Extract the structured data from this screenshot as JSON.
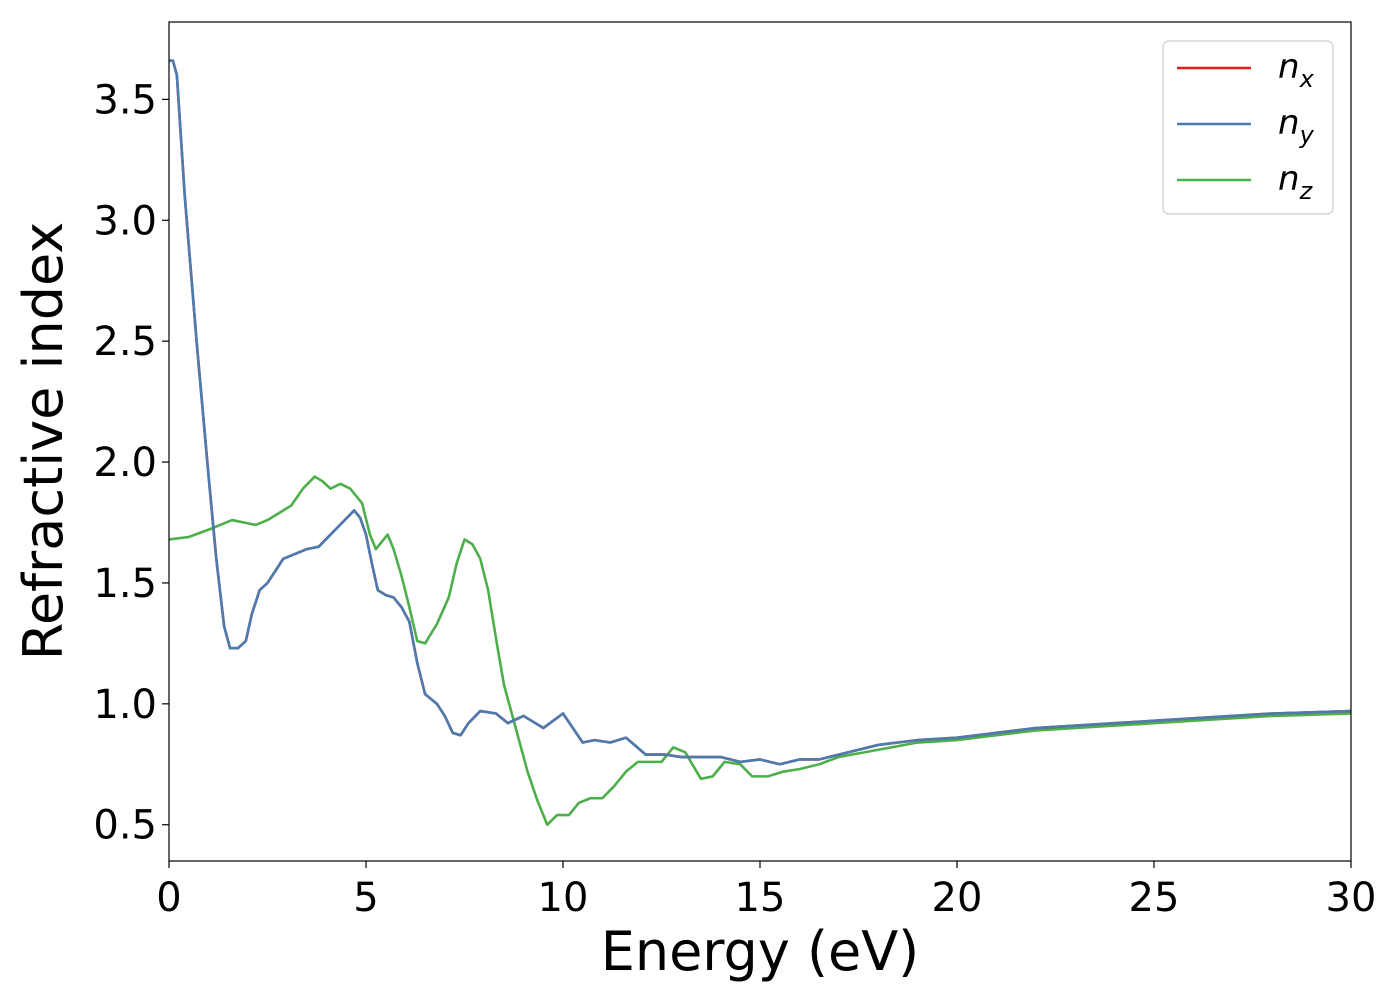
{
  "chart_data": {
    "type": "line",
    "title": "",
    "xlabel": "Energy (eV)",
    "ylabel": "Refractive index",
    "xlim": [
      0,
      30
    ],
    "ylim": [
      0.35,
      3.82
    ],
    "x_ticks": [
      "0",
      "5",
      "10",
      "15",
      "20",
      "25",
      "30"
    ],
    "y_ticks": [
      "0.5",
      "1.0",
      "1.5",
      "2.0",
      "2.5",
      "3.0",
      "3.5"
    ],
    "grid": false,
    "legend_position": "top-right",
    "series": [
      {
        "name": "n",
        "subscript": "x",
        "color": "#e41a1c",
        "points": [
          [
            0,
            3.66
          ],
          [
            0.1,
            3.66
          ],
          [
            0.2,
            3.6
          ],
          [
            0.4,
            3.1
          ],
          [
            0.7,
            2.5
          ],
          [
            1.0,
            1.95
          ],
          [
            1.2,
            1.6
          ],
          [
            1.4,
            1.32
          ],
          [
            1.55,
            1.23
          ],
          [
            1.75,
            1.23
          ],
          [
            1.95,
            1.26
          ],
          [
            2.1,
            1.37
          ],
          [
            2.3,
            1.47
          ],
          [
            2.5,
            1.5
          ],
          [
            2.7,
            1.55
          ],
          [
            2.9,
            1.6
          ],
          [
            3.2,
            1.62
          ],
          [
            3.5,
            1.64
          ],
          [
            3.8,
            1.65
          ],
          [
            4.1,
            1.7
          ],
          [
            4.4,
            1.75
          ],
          [
            4.7,
            1.8
          ],
          [
            4.85,
            1.77
          ],
          [
            5.0,
            1.7
          ],
          [
            5.15,
            1.58
          ],
          [
            5.3,
            1.47
          ],
          [
            5.5,
            1.45
          ],
          [
            5.7,
            1.44
          ],
          [
            5.9,
            1.4
          ],
          [
            6.1,
            1.34
          ],
          [
            6.3,
            1.17
          ],
          [
            6.5,
            1.04
          ],
          [
            6.8,
            1.0
          ],
          [
            7.0,
            0.95
          ],
          [
            7.2,
            0.88
          ],
          [
            7.4,
            0.87
          ],
          [
            7.6,
            0.92
          ],
          [
            7.9,
            0.97
          ],
          [
            8.3,
            0.96
          ],
          [
            8.6,
            0.92
          ],
          [
            9.0,
            0.95
          ],
          [
            9.5,
            0.9
          ],
          [
            10.0,
            0.96
          ],
          [
            10.5,
            0.84
          ],
          [
            10.8,
            0.85
          ],
          [
            11.2,
            0.84
          ],
          [
            11.6,
            0.86
          ],
          [
            12.1,
            0.79
          ],
          [
            12.6,
            0.79
          ],
          [
            13.0,
            0.78
          ],
          [
            13.5,
            0.78
          ],
          [
            14.0,
            0.78
          ],
          [
            14.5,
            0.76
          ],
          [
            15.0,
            0.77
          ],
          [
            15.5,
            0.75
          ],
          [
            16.0,
            0.77
          ],
          [
            16.5,
            0.77
          ],
          [
            17.0,
            0.79
          ],
          [
            18.0,
            0.83
          ],
          [
            19.0,
            0.85
          ],
          [
            20.0,
            0.86
          ],
          [
            22.0,
            0.9
          ],
          [
            24.0,
            0.92
          ],
          [
            26.0,
            0.94
          ],
          [
            28.0,
            0.96
          ],
          [
            30.0,
            0.97
          ]
        ]
      },
      {
        "name": "n",
        "subscript": "y",
        "color": "#4a7cb0",
        "points": [
          [
            0,
            3.66
          ],
          [
            0.1,
            3.66
          ],
          [
            0.2,
            3.6
          ],
          [
            0.4,
            3.1
          ],
          [
            0.7,
            2.5
          ],
          [
            1.0,
            1.95
          ],
          [
            1.2,
            1.6
          ],
          [
            1.4,
            1.32
          ],
          [
            1.55,
            1.23
          ],
          [
            1.75,
            1.23
          ],
          [
            1.95,
            1.26
          ],
          [
            2.1,
            1.37
          ],
          [
            2.3,
            1.47
          ],
          [
            2.5,
            1.5
          ],
          [
            2.7,
            1.55
          ],
          [
            2.9,
            1.6
          ],
          [
            3.2,
            1.62
          ],
          [
            3.5,
            1.64
          ],
          [
            3.8,
            1.65
          ],
          [
            4.1,
            1.7
          ],
          [
            4.4,
            1.75
          ],
          [
            4.7,
            1.8
          ],
          [
            4.85,
            1.77
          ],
          [
            5.0,
            1.7
          ],
          [
            5.15,
            1.58
          ],
          [
            5.3,
            1.47
          ],
          [
            5.5,
            1.45
          ],
          [
            5.7,
            1.44
          ],
          [
            5.9,
            1.4
          ],
          [
            6.1,
            1.34
          ],
          [
            6.3,
            1.17
          ],
          [
            6.5,
            1.04
          ],
          [
            6.8,
            1.0
          ],
          [
            7.0,
            0.95
          ],
          [
            7.2,
            0.88
          ],
          [
            7.4,
            0.87
          ],
          [
            7.6,
            0.92
          ],
          [
            7.9,
            0.97
          ],
          [
            8.3,
            0.96
          ],
          [
            8.6,
            0.92
          ],
          [
            9.0,
            0.95
          ],
          [
            9.5,
            0.9
          ],
          [
            10.0,
            0.96
          ],
          [
            10.5,
            0.84
          ],
          [
            10.8,
            0.85
          ],
          [
            11.2,
            0.84
          ],
          [
            11.6,
            0.86
          ],
          [
            12.1,
            0.79
          ],
          [
            12.6,
            0.79
          ],
          [
            13.0,
            0.78
          ],
          [
            13.5,
            0.78
          ],
          [
            14.0,
            0.78
          ],
          [
            14.5,
            0.76
          ],
          [
            15.0,
            0.77
          ],
          [
            15.5,
            0.75
          ],
          [
            16.0,
            0.77
          ],
          [
            16.5,
            0.77
          ],
          [
            17.0,
            0.79
          ],
          [
            18.0,
            0.83
          ],
          [
            19.0,
            0.85
          ],
          [
            20.0,
            0.86
          ],
          [
            22.0,
            0.9
          ],
          [
            24.0,
            0.92
          ],
          [
            26.0,
            0.94
          ],
          [
            28.0,
            0.96
          ],
          [
            30.0,
            0.97
          ]
        ]
      },
      {
        "name": "n",
        "subscript": "z",
        "color": "#4daf4a",
        "points": [
          [
            0,
            1.68
          ],
          [
            0.5,
            1.69
          ],
          [
            1.0,
            1.72
          ],
          [
            1.3,
            1.74
          ],
          [
            1.6,
            1.76
          ],
          [
            1.9,
            1.75
          ],
          [
            2.2,
            1.74
          ],
          [
            2.5,
            1.76
          ],
          [
            2.8,
            1.79
          ],
          [
            3.1,
            1.82
          ],
          [
            3.4,
            1.89
          ],
          [
            3.7,
            1.94
          ],
          [
            3.9,
            1.92
          ],
          [
            4.1,
            1.89
          ],
          [
            4.35,
            1.91
          ],
          [
            4.6,
            1.89
          ],
          [
            4.9,
            1.83
          ],
          [
            5.1,
            1.7
          ],
          [
            5.25,
            1.64
          ],
          [
            5.4,
            1.67
          ],
          [
            5.55,
            1.7
          ],
          [
            5.7,
            1.64
          ],
          [
            5.9,
            1.53
          ],
          [
            6.1,
            1.4
          ],
          [
            6.3,
            1.26
          ],
          [
            6.5,
            1.25
          ],
          [
            6.8,
            1.33
          ],
          [
            7.1,
            1.44
          ],
          [
            7.3,
            1.58
          ],
          [
            7.5,
            1.68
          ],
          [
            7.7,
            1.66
          ],
          [
            7.9,
            1.6
          ],
          [
            8.1,
            1.47
          ],
          [
            8.3,
            1.27
          ],
          [
            8.5,
            1.08
          ],
          [
            8.8,
            0.9
          ],
          [
            9.1,
            0.72
          ],
          [
            9.35,
            0.6
          ],
          [
            9.6,
            0.5
          ],
          [
            9.85,
            0.54
          ],
          [
            10.15,
            0.54
          ],
          [
            10.4,
            0.59
          ],
          [
            10.7,
            0.61
          ],
          [
            11.0,
            0.61
          ],
          [
            11.3,
            0.66
          ],
          [
            11.6,
            0.72
          ],
          [
            11.9,
            0.76
          ],
          [
            12.2,
            0.76
          ],
          [
            12.5,
            0.76
          ],
          [
            12.8,
            0.82
          ],
          [
            13.1,
            0.8
          ],
          [
            13.5,
            0.69
          ],
          [
            13.8,
            0.7
          ],
          [
            14.1,
            0.76
          ],
          [
            14.5,
            0.75
          ],
          [
            14.8,
            0.7
          ],
          [
            15.2,
            0.7
          ],
          [
            15.6,
            0.72
          ],
          [
            16.0,
            0.73
          ],
          [
            16.5,
            0.75
          ],
          [
            17.0,
            0.78
          ],
          [
            18.0,
            0.81
          ],
          [
            19.0,
            0.84
          ],
          [
            20.0,
            0.85
          ],
          [
            22.0,
            0.89
          ],
          [
            24.0,
            0.91
          ],
          [
            26.0,
            0.93
          ],
          [
            28.0,
            0.95
          ],
          [
            30.0,
            0.96
          ]
        ]
      }
    ]
  }
}
